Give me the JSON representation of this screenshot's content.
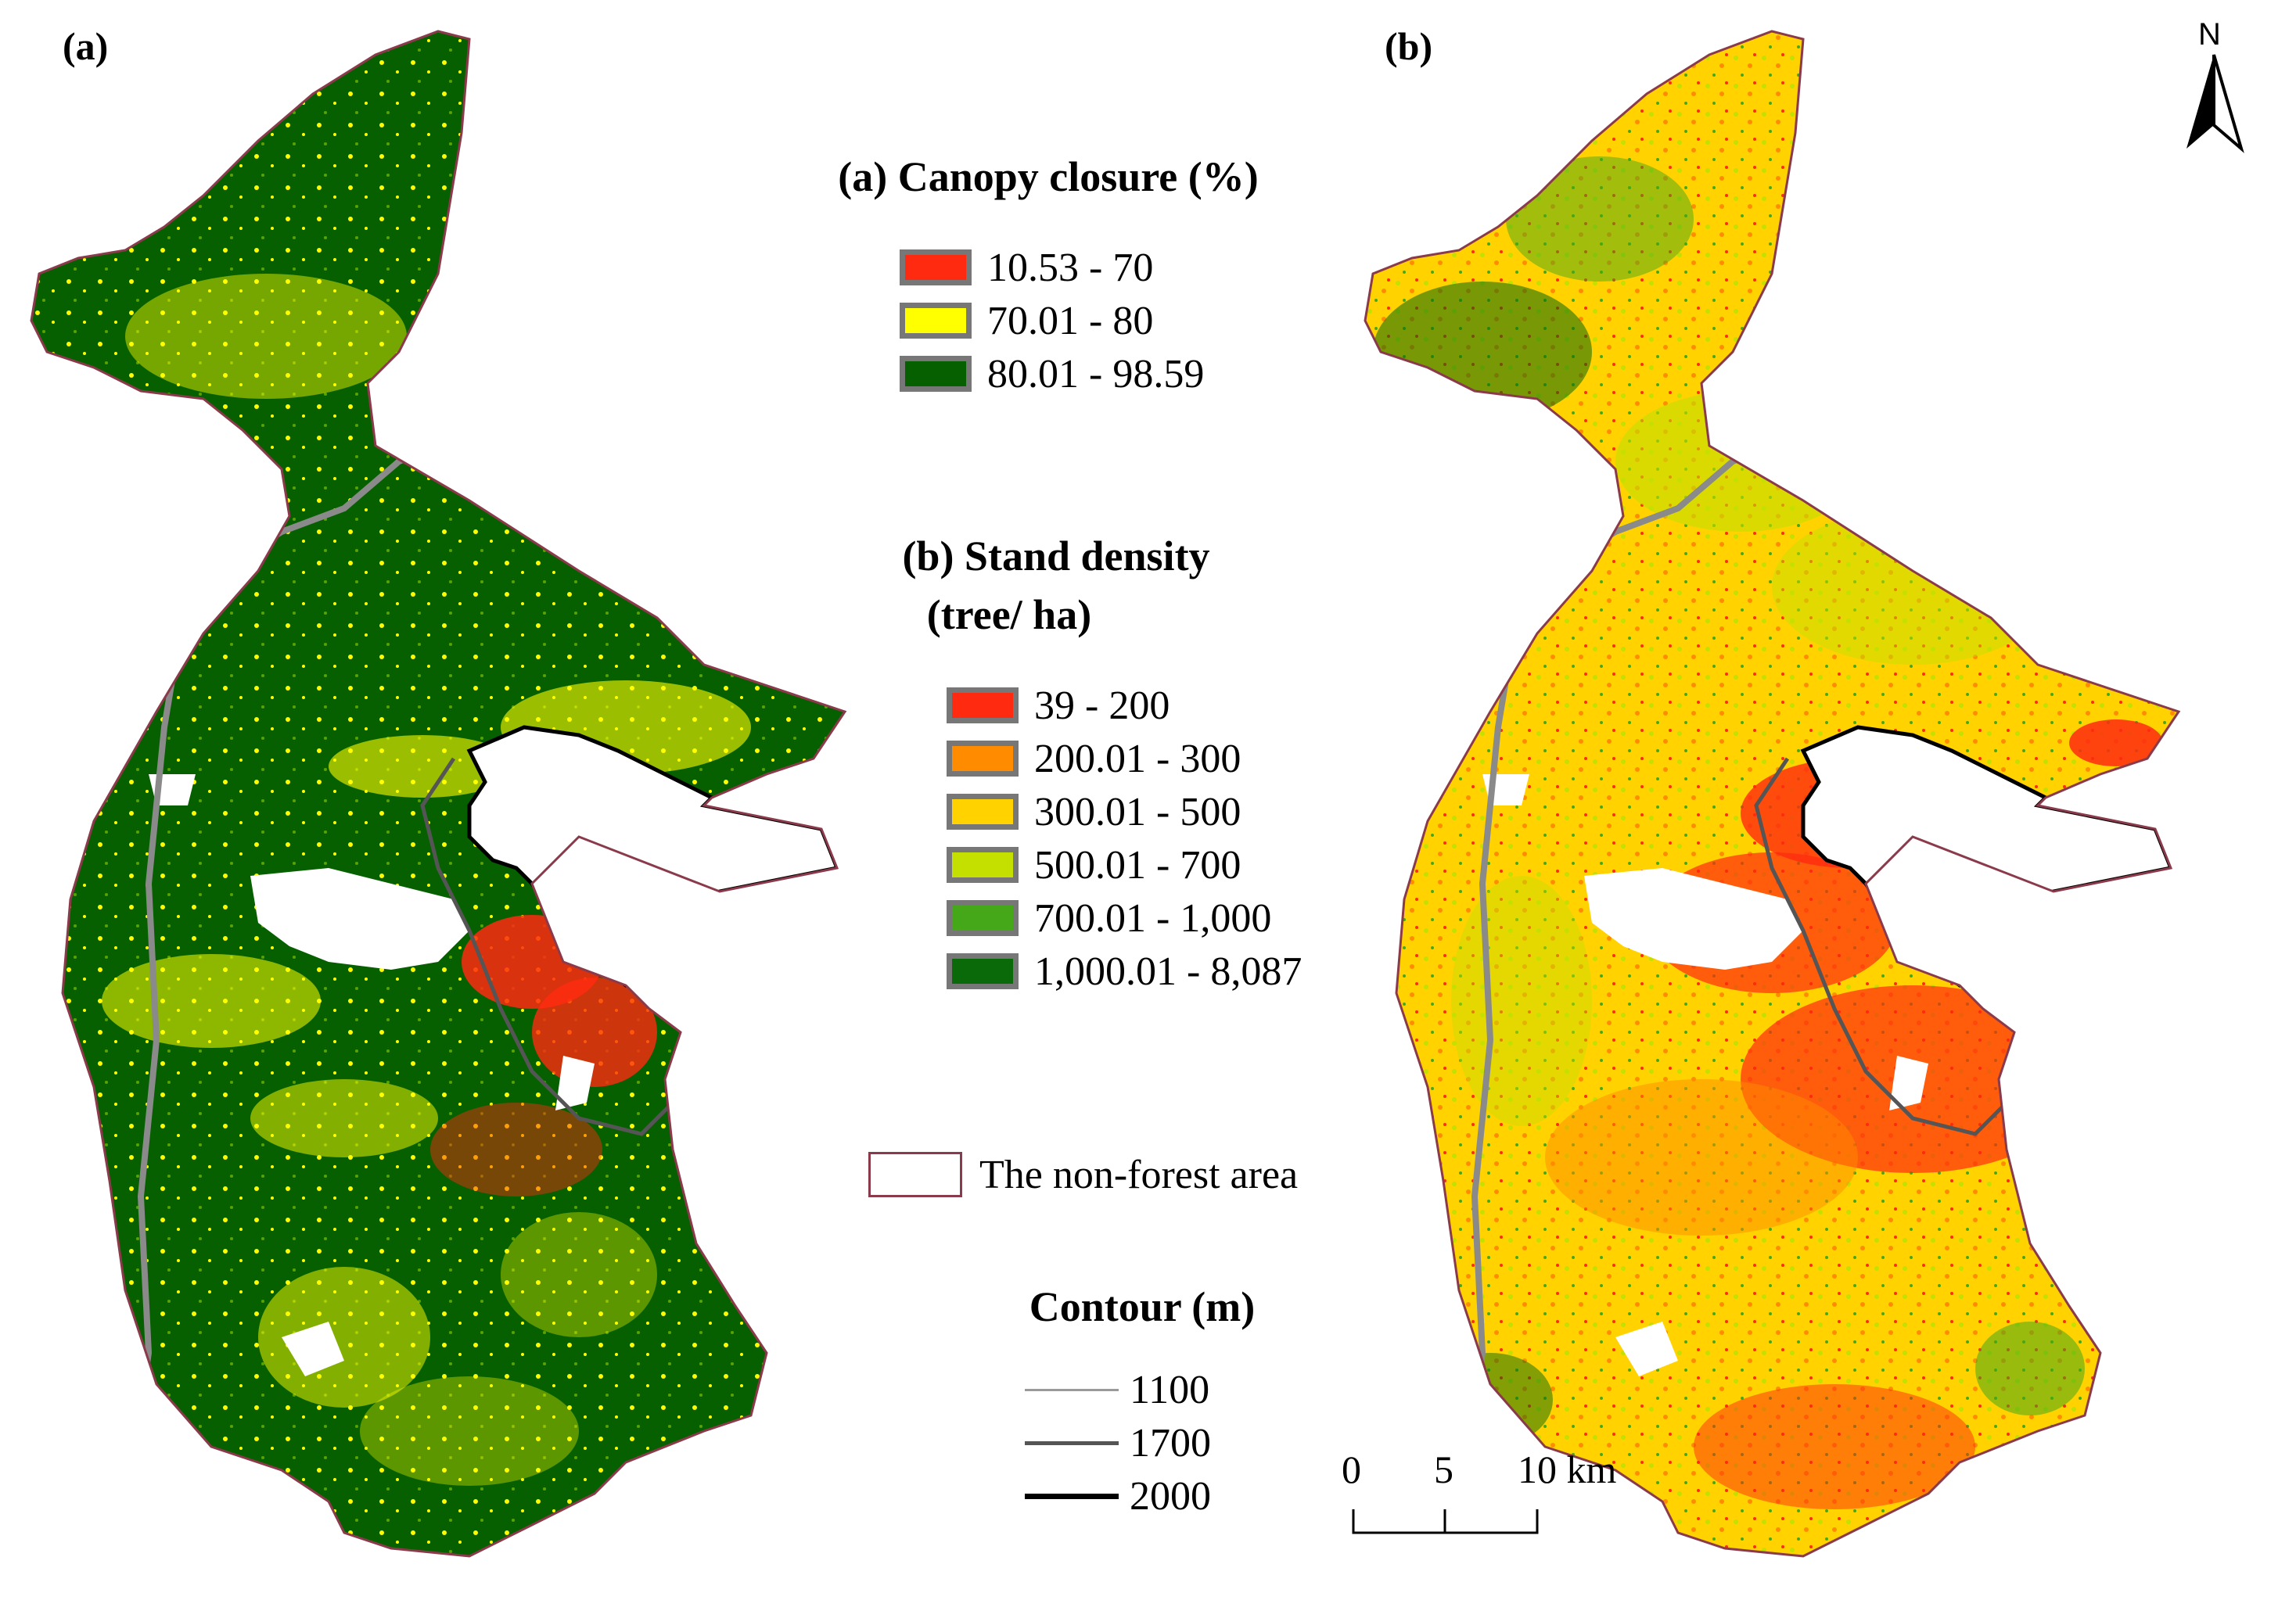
{
  "panels": {
    "a": {
      "label": "(a)"
    },
    "b": {
      "label": "(b)"
    }
  },
  "legend_canopy": {
    "title": "(a) Canopy closure (%)",
    "items": [
      {
        "label": "10.53 - 70",
        "color": "#ff2a10"
      },
      {
        "label": "70.01 - 80",
        "color": "#ffff00"
      },
      {
        "label": "80.01 - 98.59",
        "color": "#066000"
      }
    ]
  },
  "legend_density": {
    "title_line1": "(b) Stand density",
    "title_line2": "(tree/ ha)",
    "items": [
      {
        "label": "39 - 200",
        "color": "#ff2a10"
      },
      {
        "label": "200.01 - 300",
        "color": "#ff8c00"
      },
      {
        "label": "300.01 - 500",
        "color": "#ffd200"
      },
      {
        "label": "500.01 - 700",
        "color": "#c3e000"
      },
      {
        "label": "700.01 - 1,000",
        "color": "#45a818"
      },
      {
        "label": "1,000.01 - 8,087",
        "color": "#0a6a0a"
      }
    ]
  },
  "non_forest": {
    "label": "The non-forest area",
    "color": "#8a3a4a"
  },
  "contour": {
    "title": "Contour (m)",
    "items": [
      {
        "label": "1100",
        "color": "#9a9a9a"
      },
      {
        "label": "1700",
        "color": "#555555"
      },
      {
        "label": "2000",
        "color": "#000000"
      }
    ]
  },
  "north_arrow": {
    "label": "N"
  },
  "scale_bar": {
    "ticks": [
      "0",
      "5",
      "10 km"
    ]
  }
}
